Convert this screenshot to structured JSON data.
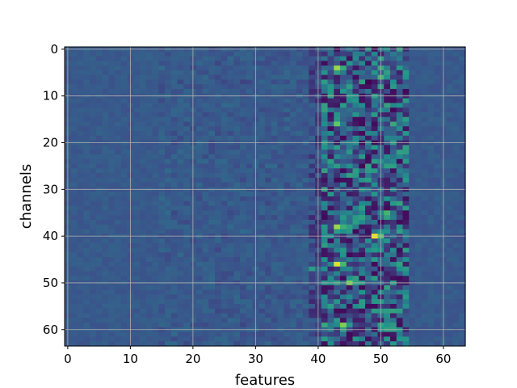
{
  "chart_data": {
    "type": "heatmap",
    "title": "",
    "xlabel": "features",
    "ylabel": "channels",
    "rows": 64,
    "cols": 64,
    "xlim": [
      -0.5,
      63.5
    ],
    "ylim": [
      63.5,
      -0.5
    ],
    "x_ticks": [
      0,
      10,
      20,
      30,
      40,
      50,
      60
    ],
    "y_ticks": [
      0,
      10,
      20,
      30,
      40,
      50,
      60
    ],
    "grid": true,
    "colormap": "viridis",
    "color_range": [
      0,
      1
    ],
    "background_level": 0.28,
    "colors": {
      "grid": "#b0b0b0",
      "spine": "#000000",
      "cmap_stops": [
        "#440154",
        "#3b528b",
        "#21918c",
        "#5ec962",
        "#fde725"
      ]
    },
    "highlights": [
      {
        "channel": 4,
        "feature": 43,
        "value": 0.85
      },
      {
        "channel": 4,
        "feature": 50,
        "value": 0.6
      },
      {
        "channel": 6,
        "feature": 50,
        "value": 0.65
      },
      {
        "channel": 7,
        "feature": 48,
        "value": 0.0
      },
      {
        "channel": 8,
        "feature": 47,
        "value": 0.05
      },
      {
        "channel": 16,
        "feature": 43,
        "value": 0.75
      },
      {
        "channel": 16,
        "feature": 52,
        "value": 0.6
      },
      {
        "channel": 20,
        "feature": 50,
        "value": 0.1
      },
      {
        "channel": 22,
        "feature": 51,
        "value": 0.08
      },
      {
        "channel": 28,
        "feature": 48,
        "value": 0.55
      },
      {
        "channel": 32,
        "feature": 42,
        "value": 0.1
      },
      {
        "channel": 35,
        "feature": 51,
        "value": 0.65
      },
      {
        "channel": 38,
        "feature": 43,
        "value": 0.85
      },
      {
        "channel": 40,
        "feature": 49,
        "value": 1.0
      },
      {
        "channel": 42,
        "feature": 41,
        "value": 0.55
      },
      {
        "channel": 44,
        "feature": 47,
        "value": 0.05
      },
      {
        "channel": 46,
        "feature": 43,
        "value": 0.95
      },
      {
        "channel": 47,
        "feature": 39,
        "value": 0.55
      },
      {
        "channel": 50,
        "feature": 45,
        "value": 0.8
      },
      {
        "channel": 51,
        "feature": 41,
        "value": 0.05
      },
      {
        "channel": 53,
        "feature": 50,
        "value": 0.1
      },
      {
        "channel": 56,
        "feature": 47,
        "value": 0.05
      },
      {
        "channel": 59,
        "feature": 44,
        "value": 0.8
      },
      {
        "channel": 59,
        "feature": 41,
        "value": 0.6
      },
      {
        "channel": 62,
        "feature": 48,
        "value": 0.05
      }
    ]
  }
}
